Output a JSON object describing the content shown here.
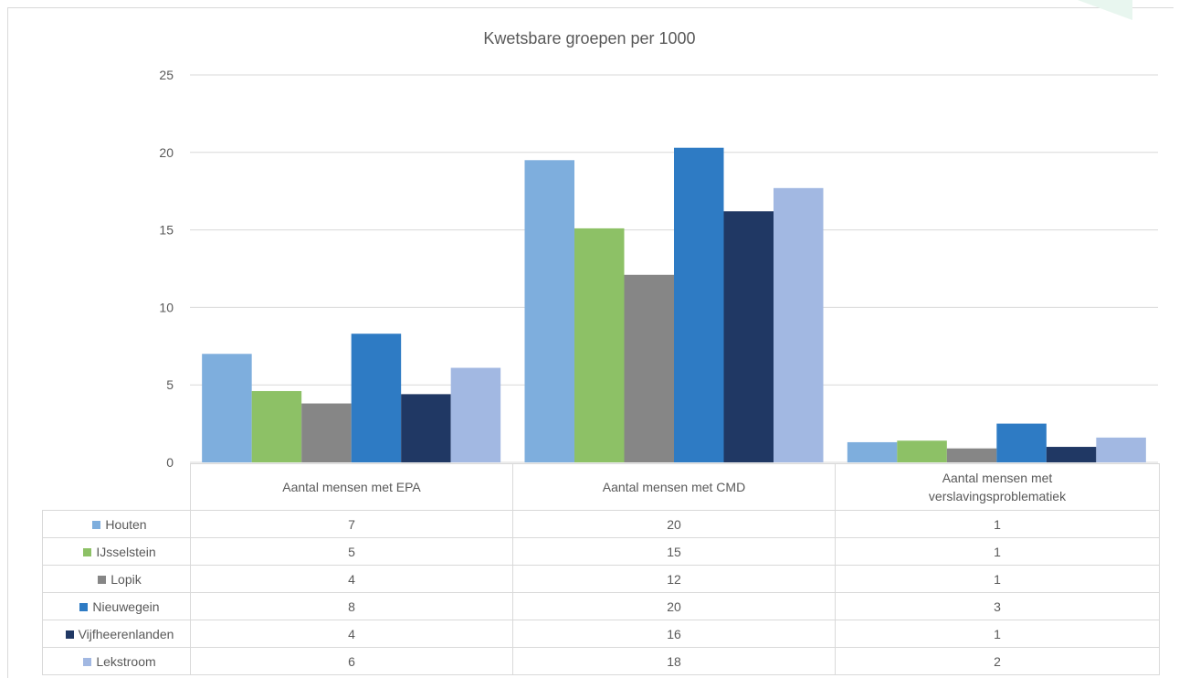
{
  "chart_data": {
    "type": "bar",
    "title": "Kwetsbare groepen per 1000",
    "categories": [
      "Aantal mensen met EPA",
      "Aantal mensen met CMD",
      "Aantal mensen met verslavingsproblematiek"
    ],
    "y_ticks": [
      "0",
      "5",
      "10",
      "15",
      "20",
      "25"
    ],
    "ylim": [
      0,
      25
    ],
    "grid": true,
    "legend": "data-table",
    "series": [
      {
        "name": "Houten",
        "color": "#7eaedd",
        "values": [
          7.0,
          19.5,
          1.3
        ],
        "table_values": [
          "7",
          "20",
          "1"
        ]
      },
      {
        "name": "IJsselstein",
        "color": "#8dc166",
        "values": [
          4.6,
          15.1,
          1.4
        ],
        "table_values": [
          "5",
          "15",
          "1"
        ]
      },
      {
        "name": "Lopik",
        "color": "#868686",
        "values": [
          3.8,
          12.1,
          0.9
        ],
        "table_values": [
          "4",
          "12",
          "1"
        ]
      },
      {
        "name": "Nieuwegein",
        "color": "#2e7bc4",
        "values": [
          8.3,
          20.3,
          2.5
        ],
        "table_values": [
          "8",
          "20",
          "3"
        ]
      },
      {
        "name": "Vijfheerenlanden",
        "color": "#203864",
        "values": [
          4.4,
          16.2,
          1.0
        ],
        "table_values": [
          "4",
          "16",
          "1"
        ]
      },
      {
        "name": "Lekstroom",
        "color": "#a2b8e2",
        "values": [
          6.1,
          17.7,
          1.6
        ],
        "table_values": [
          "6",
          "18",
          "2"
        ]
      }
    ]
  }
}
